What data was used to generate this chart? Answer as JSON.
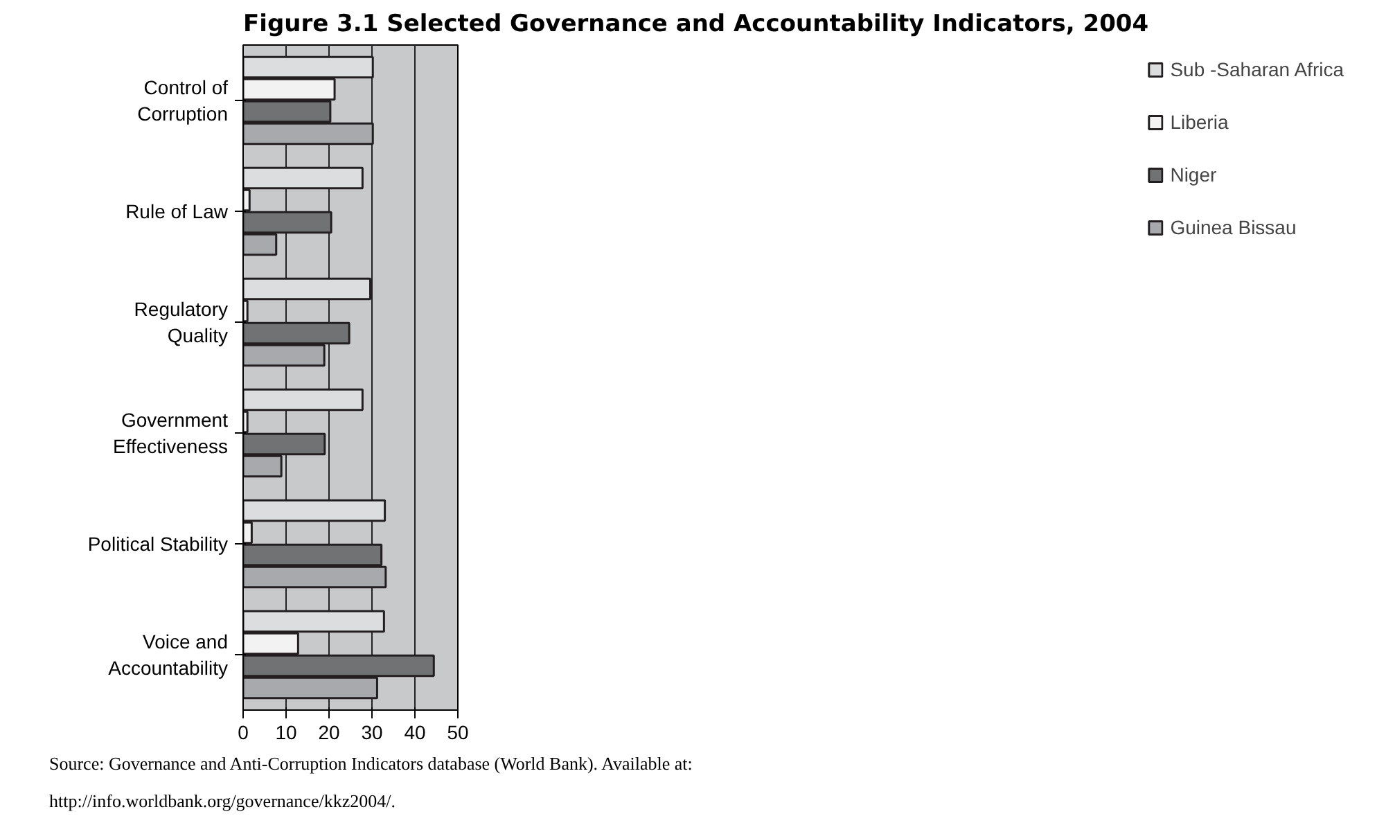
{
  "chart_data": {
    "type": "bar",
    "orientation": "horizontal",
    "title": "Figure 3.1  Selected Governance and Accountability Indicators, 2004",
    "categories": [
      "Control of\nCorruption",
      "Rule of Law",
      "Regulatory\nQuality",
      "Government\nEffectiveness",
      "Political Stability",
      "Voice and\nAccountability"
    ],
    "series": [
      {
        "name": "Sub -Saharan Africa",
        "color": "#dcdddf",
        "values": [
          30.2,
          27.8,
          29.6,
          27.8,
          33.0,
          32.8
        ]
      },
      {
        "name": "Liberia",
        "color": "#f2f2f2",
        "values": [
          21.3,
          1.5,
          1.0,
          1.0,
          2.0,
          12.8
        ]
      },
      {
        "name": "Niger",
        "color": "#717274",
        "values": [
          20.3,
          20.5,
          24.7,
          19.0,
          32.2,
          44.4
        ]
      },
      {
        "name": "Guinea Bissau",
        "color": "#a7a9ac",
        "values": [
          30.2,
          7.7,
          18.9,
          8.9,
          33.2,
          31.2
        ]
      }
    ],
    "xlim": [
      0,
      50
    ],
    "xticks": [
      0,
      10,
      20,
      30,
      40,
      50
    ],
    "grid": "x",
    "legend": "right",
    "annotations": [
      "Source: Governance and Anti-Corruption Indicators database (World Bank). Available at:\nhttp://info.worldbank.org/governance/kkz2004/."
    ]
  }
}
